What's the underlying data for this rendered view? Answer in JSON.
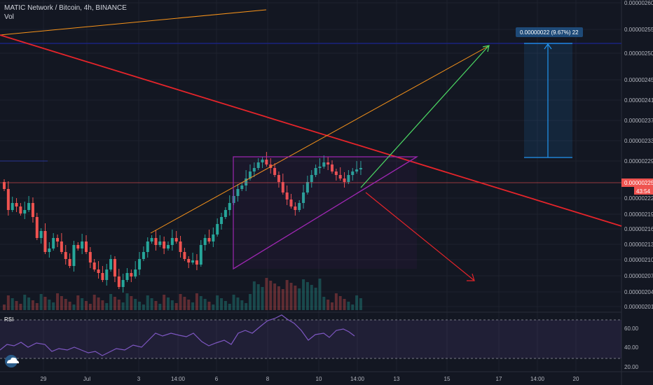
{
  "header": {
    "symbol": "MATIC Network / Bitcoin, 4h, BINANCE",
    "volume_label": "Vol"
  },
  "price_axis": {
    "labels": [
      "0.00000260",
      "0.00000255",
      "0.00000250",
      "0.00000245",
      "0.00000241",
      "0.00000237",
      "0.00000233",
      "0.00000229",
      "0.00000222",
      "0.00000219",
      "0.00000216",
      "0.00000213",
      "0.00000210",
      "0.00000207",
      "0.00000204",
      "0.00000201"
    ],
    "current_price": "0.00000225",
    "countdown": "43:54"
  },
  "time_axis": {
    "labels": [
      "29",
      "Jul",
      "3",
      "14:00",
      "6",
      "8",
      "10",
      "14:00",
      "13",
      "15",
      "17",
      "14:00",
      "20"
    ]
  },
  "measure": {
    "label": "0.00000022 (9.67%) 22"
  },
  "rsi": {
    "label": "RSI",
    "levels": [
      "60.00",
      "40.00",
      "20.00"
    ]
  },
  "colors": {
    "up": "#26a69a",
    "down": "#ef5350",
    "background": "#131722",
    "grid": "#1e222d",
    "trend_red": "#e5242a",
    "trend_orange": "#f7931a",
    "target_green": "#4cd964",
    "triangle_purple": "#9c27b0",
    "measure_blue": "#2196f3",
    "blue_line": "#1a237e",
    "rsi_line": "#7e57c2"
  },
  "icons": [
    "cloud-logo-icon"
  ]
}
